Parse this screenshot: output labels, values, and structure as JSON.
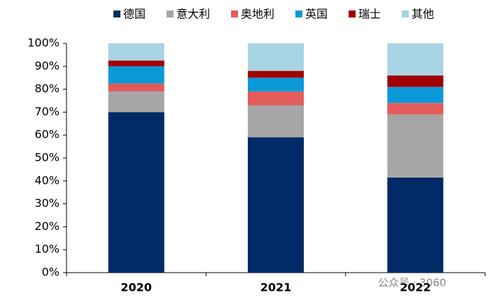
{
  "chart_data": {
    "type": "stacked_bar",
    "categories": [
      "2020",
      "2021",
      "2022"
    ],
    "series": [
      {
        "name": "德国",
        "color": "#002b66",
        "values": [
          70,
          59,
          41.5
        ]
      },
      {
        "name": "意大利",
        "color": "#a6a6a6",
        "values": [
          9,
          14,
          27.5
        ]
      },
      {
        "name": "奥地利",
        "color": "#e35b5b",
        "values": [
          3.5,
          6,
          5
        ]
      },
      {
        "name": "英国",
        "color": "#0a9ad8",
        "values": [
          7.5,
          6,
          7
        ]
      },
      {
        "name": "瑞士",
        "color": "#a00000",
        "values": [
          2.5,
          3,
          5
        ]
      },
      {
        "name": "其他",
        "color": "#a9d4e3",
        "values": [
          7.5,
          12,
          14
        ]
      }
    ],
    "ylim": [
      0,
      100
    ],
    "yticks": [
      {
        "value": 0,
        "label": "0%"
      },
      {
        "value": 10,
        "label": "10%"
      },
      {
        "value": 20,
        "label": "20%"
      },
      {
        "value": 30,
        "label": "30%"
      },
      {
        "value": 40,
        "label": "40%"
      },
      {
        "value": 50,
        "label": "50%"
      },
      {
        "value": 60,
        "label": "60%"
      },
      {
        "value": 70,
        "label": "70%"
      },
      {
        "value": 80,
        "label": "80%"
      },
      {
        "value": 90,
        "label": "90%"
      },
      {
        "value": 100,
        "label": "100%"
      }
    ],
    "watermark": "公众号 · 3060"
  }
}
